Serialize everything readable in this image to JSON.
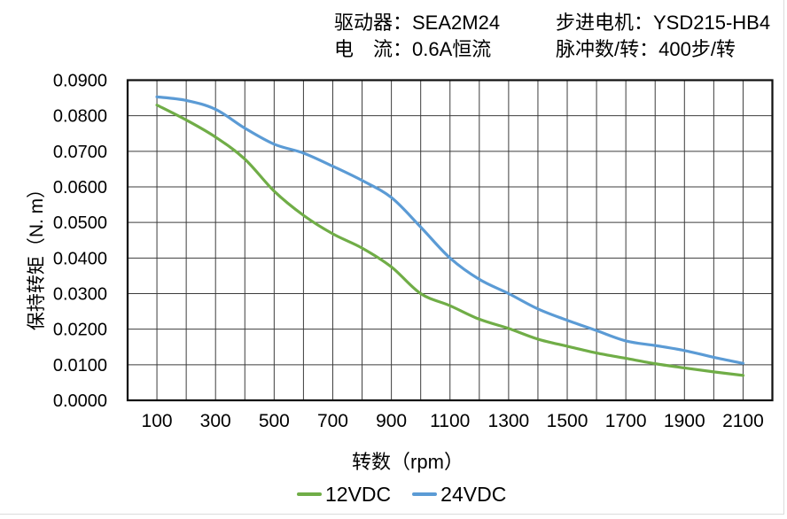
{
  "header": {
    "driver": "驱动器：SEA2M24",
    "current": "电　流：0.6A恒流",
    "motor": "步进电机：YSD215-HB4",
    "pulses": "脉冲数/转：400步/转"
  },
  "chart_data": {
    "type": "line",
    "title": "",
    "xlabel": "转数（rpm）",
    "ylabel": "保持转矩（N. m）",
    "xlim": [
      0,
      2200
    ],
    "ylim": [
      0.0,
      0.09
    ],
    "grid": true,
    "grid_step_x_rpm": 100,
    "grid_step_y_nm": 0.01,
    "grid_color": "#3d3d3d",
    "axis_color": "#111111",
    "legend_position": "bottom",
    "x": [
      100,
      200,
      300,
      400,
      500,
      600,
      700,
      800,
      900,
      1000,
      1100,
      1200,
      1300,
      1400,
      1500,
      1600,
      1700,
      1800,
      1900,
      2000,
      2100
    ],
    "x_tick_values": [
      100,
      300,
      500,
      700,
      900,
      1100,
      1300,
      1500,
      1700,
      1900,
      2100
    ],
    "x_tick_labels": [
      "100",
      "300",
      "500",
      "700",
      "900",
      "1100",
      "1300",
      "1500",
      "1700",
      "1900",
      "2100"
    ],
    "y_tick_values": [
      0.09,
      0.08,
      0.07,
      0.06,
      0.05,
      0.04,
      0.03,
      0.02,
      0.01,
      0.0
    ],
    "y_tick_labels": [
      "0.0900",
      "0.0800",
      "0.0700",
      "0.0600",
      "0.0500",
      "0.0400",
      "0.0300",
      "0.0200",
      "0.0100",
      "0.0000"
    ],
    "series": [
      {
        "name": "12VDC",
        "color": "#70AD47",
        "values": [
          0.083,
          0.0788,
          0.074,
          0.0678,
          0.0588,
          0.052,
          0.0468,
          0.0428,
          0.0375,
          0.03,
          0.0266,
          0.0228,
          0.0202,
          0.0172,
          0.0152,
          0.0133,
          0.0118,
          0.0103,
          0.0091,
          0.008,
          0.007
        ]
      },
      {
        "name": "24VDC",
        "color": "#5B9BD5",
        "values": [
          0.0853,
          0.0843,
          0.0818,
          0.0765,
          0.072,
          0.0695,
          0.0658,
          0.0618,
          0.057,
          0.0487,
          0.04,
          0.034,
          0.03,
          0.0257,
          0.0225,
          0.0196,
          0.0167,
          0.0154,
          0.014,
          0.0121,
          0.0104
        ]
      }
    ]
  }
}
